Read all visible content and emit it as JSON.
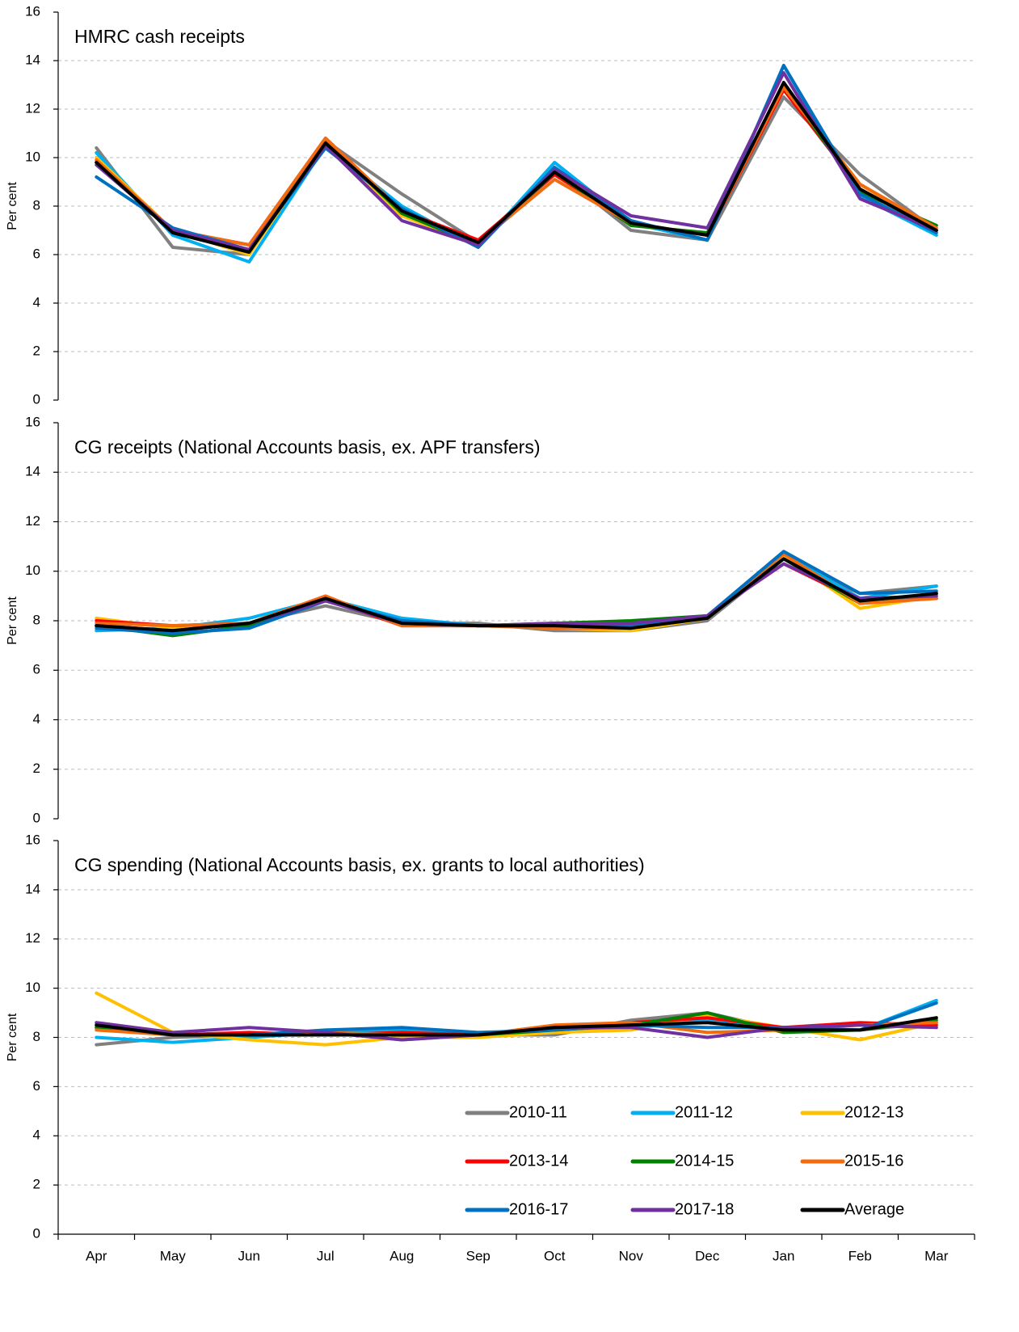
{
  "chart_data": [
    {
      "type": "line",
      "title": "HMRC cash receipts",
      "y_label": "Per cent",
      "ylim": [
        0,
        16
      ],
      "yticks": [
        0,
        2,
        4,
        6,
        8,
        10,
        12,
        14,
        16
      ],
      "grid": true,
      "series": [
        {
          "color": "#808080",
          "values": [
            10.4,
            6.3,
            6.0,
            10.7,
            8.5,
            6.5,
            9.5,
            7.0,
            6.6,
            12.5,
            9.3,
            7.0
          ]
        },
        {
          "color": "#00b0f0",
          "values": [
            10.2,
            6.8,
            5.7,
            10.5,
            8.0,
            6.3,
            9.8,
            7.3,
            6.6,
            13.8,
            8.4,
            6.8
          ]
        },
        {
          "color": "#ffc000",
          "values": [
            10.0,
            7.0,
            6.0,
            10.6,
            7.6,
            6.4,
            9.4,
            7.3,
            6.8,
            12.9,
            8.9,
            7.0
          ]
        },
        {
          "color": "#ff0000",
          "values": [
            9.8,
            7.0,
            6.4,
            10.8,
            7.8,
            6.6,
            9.3,
            7.3,
            6.8,
            12.8,
            8.7,
            7.0
          ]
        },
        {
          "color": "#008000",
          "values": [
            9.8,
            7.0,
            6.2,
            10.7,
            7.7,
            6.4,
            9.4,
            7.2,
            6.9,
            13.0,
            8.6,
            7.2
          ]
        },
        {
          "color": "#f26b0f",
          "values": [
            9.9,
            7.0,
            6.4,
            10.8,
            7.8,
            6.5,
            9.1,
            7.3,
            6.8,
            12.9,
            8.9,
            7.1
          ]
        },
        {
          "color": "#0070c0",
          "values": [
            9.2,
            7.1,
            6.2,
            10.4,
            7.9,
            6.3,
            9.6,
            7.4,
            6.6,
            13.8,
            8.5,
            6.9
          ]
        },
        {
          "color": "#7030a0",
          "values": [
            9.7,
            7.0,
            6.2,
            10.5,
            7.4,
            6.4,
            9.5,
            7.6,
            7.1,
            13.5,
            8.3,
            7.0
          ]
        },
        {
          "color": "#000000",
          "values": [
            9.8,
            6.9,
            6.1,
            10.6,
            7.8,
            6.5,
            9.4,
            7.3,
            6.8,
            13.1,
            8.7,
            7.0
          ]
        }
      ]
    },
    {
      "type": "line",
      "title": "CG receipts (National Accounts basis, ex. APF transfers)",
      "y_label": "Per cent",
      "ylim": [
        0,
        16
      ],
      "yticks": [
        0,
        2,
        4,
        6,
        8,
        10,
        12,
        14,
        16
      ],
      "grid": true,
      "series": [
        {
          "color": "#808080",
          "values": [
            7.8,
            7.6,
            7.9,
            8.6,
            7.9,
            7.9,
            7.6,
            7.6,
            8.0,
            10.5,
            9.1,
            9.4
          ]
        },
        {
          "color": "#00b0f0",
          "values": [
            7.6,
            7.7,
            8.1,
            8.9,
            8.1,
            7.8,
            7.8,
            7.7,
            8.1,
            10.7,
            8.9,
            9.4
          ]
        },
        {
          "color": "#ffc000",
          "values": [
            8.1,
            7.7,
            7.9,
            8.9,
            7.9,
            7.8,
            7.7,
            7.6,
            8.1,
            10.6,
            8.5,
            9.0
          ]
        },
        {
          "color": "#ff0000",
          "values": [
            8.0,
            7.8,
            7.9,
            8.9,
            7.8,
            7.8,
            7.8,
            7.8,
            8.2,
            10.3,
            8.8,
            8.9
          ]
        },
        {
          "color": "#008000",
          "values": [
            7.8,
            7.4,
            7.8,
            8.9,
            7.9,
            7.8,
            7.9,
            8.0,
            8.2,
            10.5,
            8.7,
            9.1
          ]
        },
        {
          "color": "#f26b0f",
          "values": [
            7.9,
            7.8,
            7.9,
            9.0,
            7.8,
            7.8,
            7.7,
            7.7,
            8.2,
            10.7,
            8.7,
            8.9
          ]
        },
        {
          "color": "#0070c0",
          "values": [
            7.7,
            7.5,
            7.7,
            8.8,
            8.0,
            7.8,
            7.8,
            7.8,
            8.2,
            10.8,
            9.1,
            9.2
          ]
        },
        {
          "color": "#7030a0",
          "values": [
            7.8,
            7.6,
            7.9,
            8.8,
            7.9,
            7.8,
            7.9,
            7.9,
            8.2,
            10.3,
            8.9,
            9.0
          ]
        },
        {
          "color": "#000000",
          "values": [
            7.8,
            7.6,
            7.9,
            8.9,
            7.9,
            7.8,
            7.8,
            7.7,
            8.1,
            10.5,
            8.8,
            9.1
          ]
        }
      ]
    },
    {
      "type": "line",
      "title": "CG spending (National Accounts basis, ex. grants to local authorities)",
      "y_label": "Per cent",
      "categories": [
        "Apr",
        "May",
        "Jun",
        "Jul",
        "Aug",
        "Sep",
        "Oct",
        "Nov",
        "Dec",
        "Jan",
        "Feb",
        "Mar"
      ],
      "ylim": [
        0,
        16
      ],
      "yticks": [
        0,
        2,
        4,
        6,
        8,
        10,
        12,
        14,
        16
      ],
      "grid": true,
      "legend": "lower right",
      "series": [
        {
          "name": "2010-11",
          "color": "#808080",
          "values": [
            7.7,
            8.0,
            8.1,
            8.2,
            7.9,
            8.1,
            8.1,
            8.7,
            9.0,
            8.3,
            8.3,
            8.6
          ]
        },
        {
          "name": "2011-12",
          "color": "#00b0f0",
          "values": [
            8.0,
            7.8,
            8.0,
            8.2,
            8.3,
            8.1,
            8.3,
            8.4,
            8.7,
            8.3,
            8.3,
            9.5
          ]
        },
        {
          "name": "2012-13",
          "color": "#ffc000",
          "values": [
            9.8,
            8.2,
            7.9,
            7.7,
            8.0,
            8.0,
            8.2,
            8.3,
            8.9,
            8.4,
            7.9,
            8.6
          ]
        },
        {
          "name": "2013-14",
          "color": "#ff0000",
          "values": [
            8.4,
            8.1,
            8.2,
            8.1,
            8.2,
            8.1,
            8.4,
            8.6,
            8.8,
            8.4,
            8.6,
            8.5
          ]
        },
        {
          "name": "2014-15",
          "color": "#008000",
          "values": [
            8.4,
            8.1,
            8.1,
            8.2,
            8.1,
            8.1,
            8.3,
            8.5,
            9.0,
            8.2,
            8.3,
            8.7
          ]
        },
        {
          "name": "2015-16",
          "color": "#f26b0f",
          "values": [
            8.3,
            8.1,
            8.1,
            8.2,
            8.1,
            8.1,
            8.5,
            8.6,
            8.2,
            8.3,
            8.5,
            8.6
          ]
        },
        {
          "name": "2016-17",
          "color": "#0070c0",
          "values": [
            8.5,
            8.1,
            8.1,
            8.3,
            8.4,
            8.2,
            8.3,
            8.5,
            8.4,
            8.4,
            8.3,
            9.4
          ]
        },
        {
          "name": "2017-18",
          "color": "#7030a0",
          "values": [
            8.6,
            8.2,
            8.4,
            8.2,
            7.9,
            8.1,
            8.4,
            8.4,
            8.0,
            8.4,
            8.5,
            8.4
          ]
        },
        {
          "name": "Average",
          "color": "#000000",
          "values": [
            8.5,
            8.1,
            8.1,
            8.1,
            8.1,
            8.1,
            8.4,
            8.5,
            8.6,
            8.3,
            8.3,
            8.8
          ]
        }
      ]
    }
  ]
}
